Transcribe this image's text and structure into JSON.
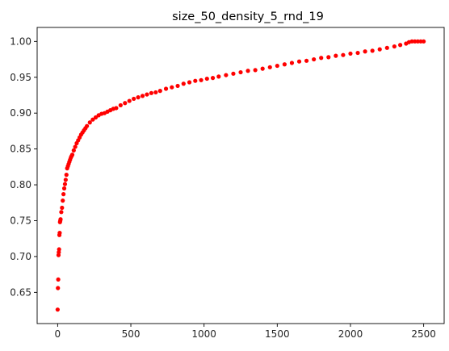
{
  "chart_data": {
    "type": "scatter",
    "title": "size_50_density_5_rnd_19",
    "xlabel": "",
    "ylabel": "",
    "xlim": [
      -140,
      2640
    ],
    "ylim": [
      0.6065,
      1.0195
    ],
    "grid": false,
    "legend": "none",
    "marker_color": "#ff0000",
    "x_ticks": [
      0,
      500,
      1000,
      1500,
      2000,
      2500
    ],
    "x_tick_labels": [
      "0",
      "500",
      "1000",
      "1500",
      "2000",
      "2500"
    ],
    "y_ticks": [
      0.65,
      0.7,
      0.75,
      0.8,
      0.85,
      0.9,
      0.95,
      1.0
    ],
    "y_tick_labels": [
      "0.65",
      "0.70",
      "0.75",
      "0.80",
      "0.85",
      "0.90",
      "0.95",
      "1.00"
    ],
    "series": [
      {
        "x": [
          0,
          2,
          4,
          6,
          8,
          10,
          12,
          14,
          16,
          18,
          20,
          25,
          30,
          35,
          40,
          45,
          50,
          55,
          60,
          65,
          70,
          75,
          80,
          85,
          90,
          95,
          100,
          110,
          120,
          130,
          140,
          150,
          160,
          170,
          180,
          190,
          200,
          220,
          240,
          260,
          280,
          300,
          320,
          340,
          360,
          380,
          400,
          430,
          460,
          490,
          520,
          550,
          580,
          610,
          640,
          670,
          700,
          740,
          780,
          820,
          860,
          900,
          940,
          980,
          1020,
          1060,
          1100,
          1150,
          1200,
          1250,
          1300,
          1350,
          1400,
          1450,
          1500,
          1550,
          1600,
          1650,
          1700,
          1750,
          1800,
          1850,
          1900,
          1950,
          2000,
          2050,
          2100,
          2150,
          2200,
          2250,
          2300,
          2340,
          2380,
          2400,
          2420,
          2440,
          2460,
          2480,
          2500
        ],
        "y": [
          0.626,
          0.656,
          0.668,
          0.702,
          0.706,
          0.71,
          0.73,
          0.733,
          0.748,
          0.75,
          0.752,
          0.762,
          0.768,
          0.778,
          0.787,
          0.795,
          0.801,
          0.807,
          0.814,
          0.823,
          0.826,
          0.829,
          0.832,
          0.835,
          0.838,
          0.84,
          0.842,
          0.848,
          0.853,
          0.858,
          0.862,
          0.866,
          0.87,
          0.873,
          0.876,
          0.879,
          0.882,
          0.887,
          0.891,
          0.894,
          0.897,
          0.899,
          0.9,
          0.902,
          0.904,
          0.906,
          0.907,
          0.911,
          0.914,
          0.917,
          0.92,
          0.922,
          0.924,
          0.926,
          0.928,
          0.929,
          0.931,
          0.934,
          0.936,
          0.938,
          0.941,
          0.943,
          0.945,
          0.946,
          0.948,
          0.949,
          0.951,
          0.953,
          0.955,
          0.957,
          0.959,
          0.96,
          0.962,
          0.964,
          0.966,
          0.968,
          0.97,
          0.972,
          0.973,
          0.975,
          0.977,
          0.978,
          0.98,
          0.981,
          0.983,
          0.984,
          0.986,
          0.987,
          0.989,
          0.991,
          0.993,
          0.995,
          0.997,
          0.999,
          1.0,
          1.0,
          1.0,
          1.0,
          1.0
        ]
      }
    ]
  }
}
